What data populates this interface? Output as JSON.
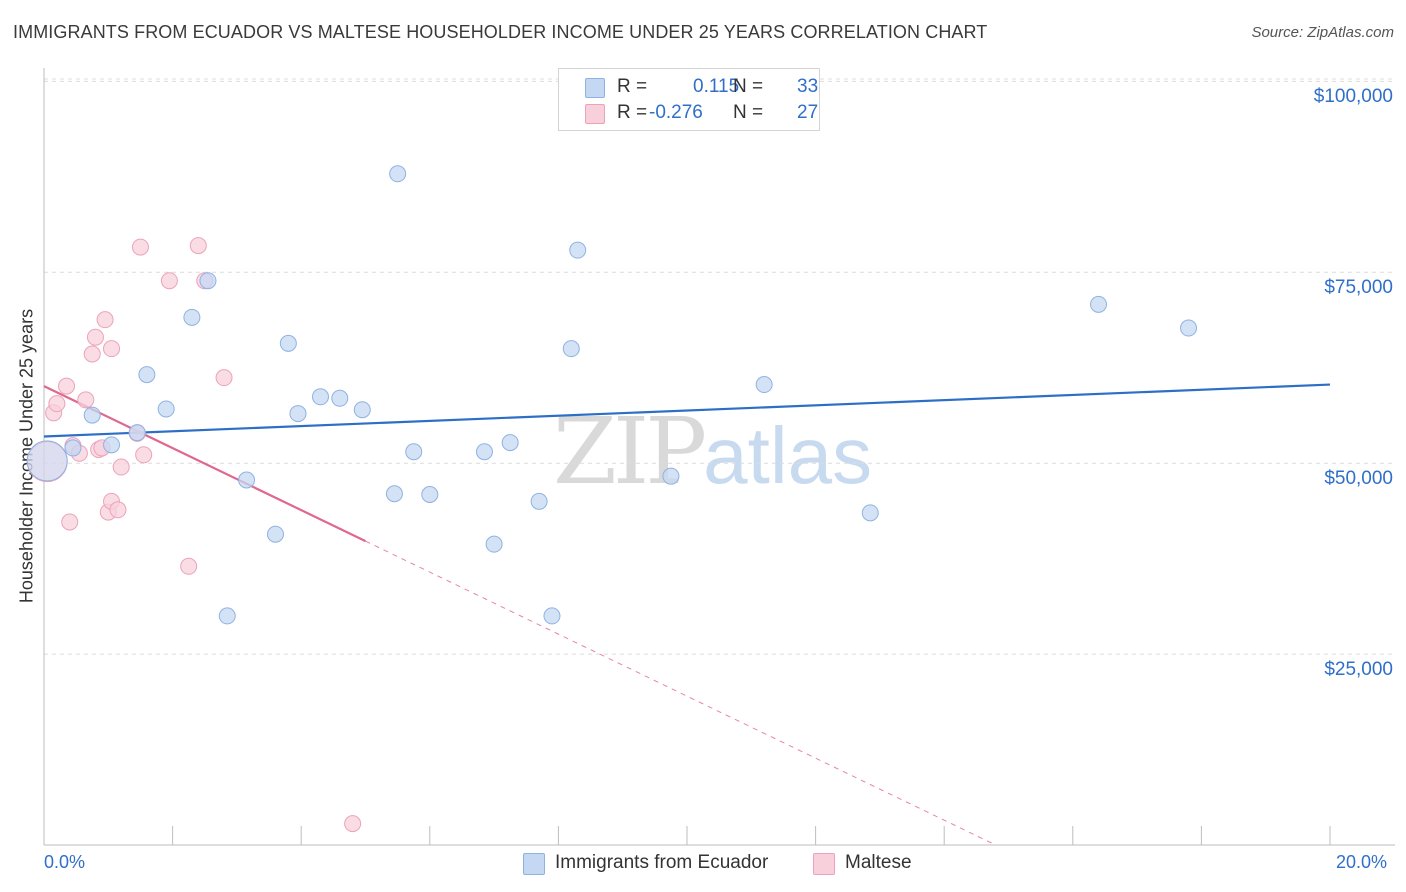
{
  "title": "IMMIGRANTS FROM ECUADOR VS MALTESE HOUSEHOLDER INCOME UNDER 25 YEARS CORRELATION CHART",
  "source": "Source: ZipAtlas.com",
  "watermark": {
    "zip": "ZIP",
    "atlas": "atlas"
  },
  "legend": {
    "rows": [
      {
        "r_label": "R =",
        "r_value": "0.115",
        "n_label": "N =",
        "n_value": "33"
      },
      {
        "r_label": "R =",
        "r_value": "-0.276",
        "n_label": "N =",
        "n_value": "27"
      }
    ]
  },
  "bottom_legend": {
    "items": [
      {
        "label": "Immigrants from Ecuador"
      },
      {
        "label": "Maltese"
      }
    ]
  },
  "colors": {
    "blue_fill": "#c5d8f3",
    "blue_stroke": "#8fb2e2",
    "blue_line": "#2d6ec7",
    "pink_fill": "#f8d0dc",
    "pink_stroke": "#eca3ba",
    "pink_line": "#e0678f",
    "grid": "#dcdcdc",
    "axis_text": "#2f6fc9"
  },
  "chart_data": {
    "type": "scatter",
    "title": "IMMIGRANTS FROM ECUADOR VS MALTESE HOUSEHOLDER INCOME UNDER 25 YEARS CORRELATION CHART",
    "xlabel": "",
    "ylabel": "Householder Income Under 25 years",
    "xlim": [
      0,
      20
    ],
    "ylim": [
      0,
      105000
    ],
    "x_tick_labels": [
      "0.0%",
      "20.0%"
    ],
    "y_ticks": [
      25000,
      50000,
      75000,
      100000
    ],
    "y_tick_labels": [
      "$25,000",
      "$50,000",
      "$75,000",
      "$100,000"
    ],
    "series": [
      {
        "name": "Immigrants from Ecuador",
        "color": "blue",
        "r": 0.115,
        "n": 33,
        "trend": {
          "x": [
            0,
            20
          ],
          "y": [
            53500,
            60300
          ],
          "dashed_from": null
        },
        "points": [
          {
            "x": 0.05,
            "y": 50300,
            "big": true
          },
          {
            "x": 0.45,
            "y": 52000
          },
          {
            "x": 0.75,
            "y": 56300
          },
          {
            "x": 1.05,
            "y": 52400
          },
          {
            "x": 1.45,
            "y": 54000
          },
          {
            "x": 1.6,
            "y": 61600
          },
          {
            "x": 1.9,
            "y": 57100
          },
          {
            "x": 2.3,
            "y": 69100
          },
          {
            "x": 2.55,
            "y": 73900
          },
          {
            "x": 2.85,
            "y": 30000
          },
          {
            "x": 3.15,
            "y": 47800
          },
          {
            "x": 3.6,
            "y": 40700
          },
          {
            "x": 3.8,
            "y": 65700
          },
          {
            "x": 3.95,
            "y": 56500
          },
          {
            "x": 4.3,
            "y": 58700
          },
          {
            "x": 4.6,
            "y": 58500
          },
          {
            "x": 4.95,
            "y": 57000
          },
          {
            "x": 5.45,
            "y": 46000
          },
          {
            "x": 5.5,
            "y": 87900
          },
          {
            "x": 5.75,
            "y": 51500
          },
          {
            "x": 6.0,
            "y": 45900
          },
          {
            "x": 6.85,
            "y": 51500
          },
          {
            "x": 7.0,
            "y": 39400
          },
          {
            "x": 7.25,
            "y": 52700
          },
          {
            "x": 7.7,
            "y": 45000
          },
          {
            "x": 7.9,
            "y": 30000
          },
          {
            "x": 8.2,
            "y": 65000
          },
          {
            "x": 8.3,
            "y": 77900
          },
          {
            "x": 9.75,
            "y": 48300
          },
          {
            "x": 11.2,
            "y": 60300
          },
          {
            "x": 12.85,
            "y": 43500
          },
          {
            "x": 16.4,
            "y": 70800
          },
          {
            "x": 17.8,
            "y": 67700
          }
        ]
      },
      {
        "name": "Maltese",
        "color": "pink",
        "r": -0.276,
        "n": 27,
        "trend": {
          "x": [
            0,
            14.8
          ],
          "y": [
            60100,
            0
          ],
          "solid_until_x": 5.0
        },
        "points": [
          {
            "x": 0.05,
            "y": 50200,
            "big": true
          },
          {
            "x": 0.15,
            "y": 56600
          },
          {
            "x": 0.2,
            "y": 57800
          },
          {
            "x": 0.35,
            "y": 60100
          },
          {
            "x": 0.4,
            "y": 42300
          },
          {
            "x": 0.45,
            "y": 52300
          },
          {
            "x": 0.55,
            "y": 51300
          },
          {
            "x": 0.65,
            "y": 58300
          },
          {
            "x": 0.75,
            "y": 64300
          },
          {
            "x": 0.8,
            "y": 66500
          },
          {
            "x": 0.85,
            "y": 51800
          },
          {
            "x": 0.9,
            "y": 52000
          },
          {
            "x": 0.95,
            "y": 68800
          },
          {
            "x": 1.0,
            "y": 43600
          },
          {
            "x": 1.05,
            "y": 45000
          },
          {
            "x": 1.05,
            "y": 65000
          },
          {
            "x": 1.15,
            "y": 43900
          },
          {
            "x": 1.2,
            "y": 49500
          },
          {
            "x": 1.45,
            "y": 53900
          },
          {
            "x": 1.5,
            "y": 78300
          },
          {
            "x": 1.55,
            "y": 51100
          },
          {
            "x": 1.95,
            "y": 73900
          },
          {
            "x": 2.25,
            "y": 36500
          },
          {
            "x": 2.4,
            "y": 78500
          },
          {
            "x": 2.5,
            "y": 73900
          },
          {
            "x": 2.8,
            "y": 61200
          },
          {
            "x": 4.8,
            "y": 2800
          }
        ]
      }
    ]
  }
}
